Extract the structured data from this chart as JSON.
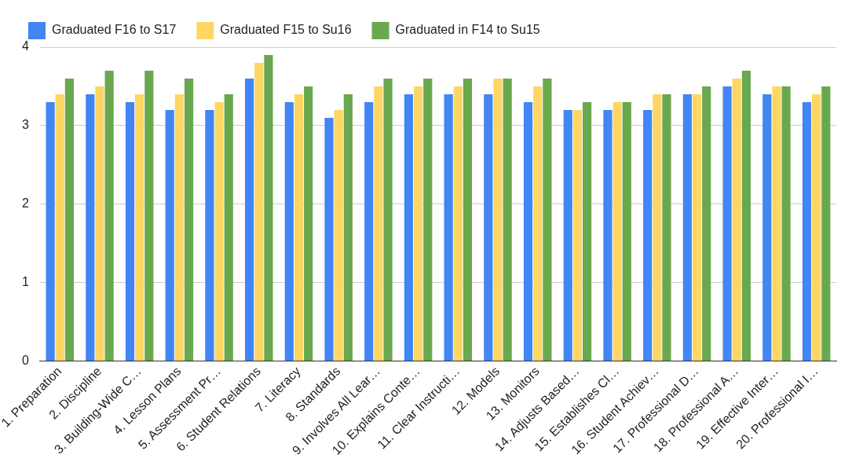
{
  "chart_data": {
    "type": "bar",
    "categories": [
      "1. Preparation",
      "2. Discipline",
      "3. Building-Wide C…",
      "4. Lesson Plans",
      "5. Assessment Pr…",
      "6. Student Relations",
      "7. Literacy",
      "8. Standards",
      "9. Involves All Lear…",
      "10. Explains Conte…",
      "11. Clear Instructi…",
      "12. Models",
      "13. Monitors",
      "14. Adjusts Based…",
      "15. Establishes Cl…",
      "16. Student Achiev…",
      "17. Professional D…",
      "18. Professional A…",
      "19. Effective Inter…",
      "20. Professional I…"
    ],
    "series": [
      {
        "name": "Graduated F16 to S17",
        "color": "#4285f4",
        "values": [
          3.3,
          3.4,
          3.3,
          3.2,
          3.2,
          3.6,
          3.3,
          3.1,
          3.3,
          3.4,
          3.4,
          3.4,
          3.3,
          3.2,
          3.2,
          3.2,
          3.4,
          3.5,
          3.4,
          3.3
        ]
      },
      {
        "name": "Graduated F15 to Su16",
        "color": "#fdd663",
        "values": [
          3.4,
          3.5,
          3.4,
          3.4,
          3.3,
          3.8,
          3.4,
          3.2,
          3.5,
          3.5,
          3.5,
          3.6,
          3.5,
          3.2,
          3.3,
          3.4,
          3.4,
          3.6,
          3.5,
          3.4
        ]
      },
      {
        "name": "Graduated in F14 to Su15",
        "color": "#6aa84f",
        "values": [
          3.6,
          3.7,
          3.7,
          3.6,
          3.4,
          3.9,
          3.5,
          3.4,
          3.6,
          3.6,
          3.6,
          3.6,
          3.6,
          3.3,
          3.3,
          3.4,
          3.5,
          3.7,
          3.5,
          3.5
        ]
      }
    ],
    "ylim": [
      0,
      4
    ],
    "yticks": [
      0,
      1,
      2,
      3,
      4
    ],
    "grid": "y",
    "legend": "top left"
  }
}
